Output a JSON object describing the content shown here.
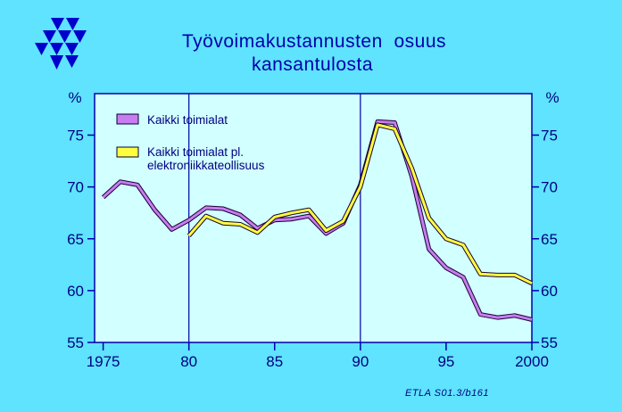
{
  "chart_data": {
    "type": "line",
    "title": "Työvoimakustannusten  osuus",
    "subtitle": "kansantulosta",
    "ylabel_left": "%",
    "ylabel_right": "%",
    "x_ticks": [
      "1975",
      "80",
      "85",
      "90",
      "95",
      "2000"
    ],
    "x_tick_values": [
      1975,
      1980,
      1985,
      1990,
      1995,
      2000
    ],
    "y_ticks": [
      "55",
      "60",
      "65",
      "70",
      "75"
    ],
    "y_tick_values": [
      55,
      60,
      65,
      70,
      75
    ],
    "xlim": [
      1974.5,
      2000
    ],
    "ylim": [
      55,
      79
    ],
    "grid": "vertical at 1980, 1990, 2000",
    "legend_position": "top-left",
    "source": "ETLA S01.3/b161",
    "colors": {
      "background": "#5fe3ff",
      "plot_background": "#d2ffff",
      "axes": "#0000aa"
    },
    "series": [
      {
        "name": "Kaikki toimialat",
        "color": "#c87cf0",
        "x": [
          1975,
          1976,
          1977,
          1978,
          1979,
          1980,
          1981,
          1982,
          1983,
          1984,
          1985,
          1986,
          1987,
          1988,
          1989,
          1990,
          1991,
          1992,
          1993,
          1994,
          1995,
          1996,
          1997,
          1998,
          1999,
          2000
        ],
        "values": [
          69.0,
          70.5,
          70.2,
          67.8,
          65.9,
          66.8,
          68.0,
          67.9,
          67.3,
          66.0,
          66.8,
          66.9,
          67.2,
          65.5,
          66.5,
          70.2,
          76.3,
          76.2,
          71.0,
          64.0,
          62.2,
          61.3,
          57.7,
          57.4,
          57.6,
          57.2
        ]
      },
      {
        "name": "Kaikki toimialat pl. elektroniikkateollisuus",
        "color": "#ffff40",
        "x": [
          1980,
          1981,
          1982,
          1983,
          1984,
          1985,
          1986,
          1987,
          1988,
          1989,
          1990,
          1991,
          1992,
          1993,
          1994,
          1995,
          1996,
          1997,
          1998,
          1999,
          2000
        ],
        "values": [
          65.3,
          67.2,
          66.5,
          66.4,
          65.6,
          67.1,
          67.5,
          67.8,
          65.8,
          66.7,
          70.0,
          76.0,
          75.6,
          71.8,
          67.0,
          65.0,
          64.4,
          61.6,
          61.5,
          61.5,
          60.7
        ]
      }
    ]
  }
}
